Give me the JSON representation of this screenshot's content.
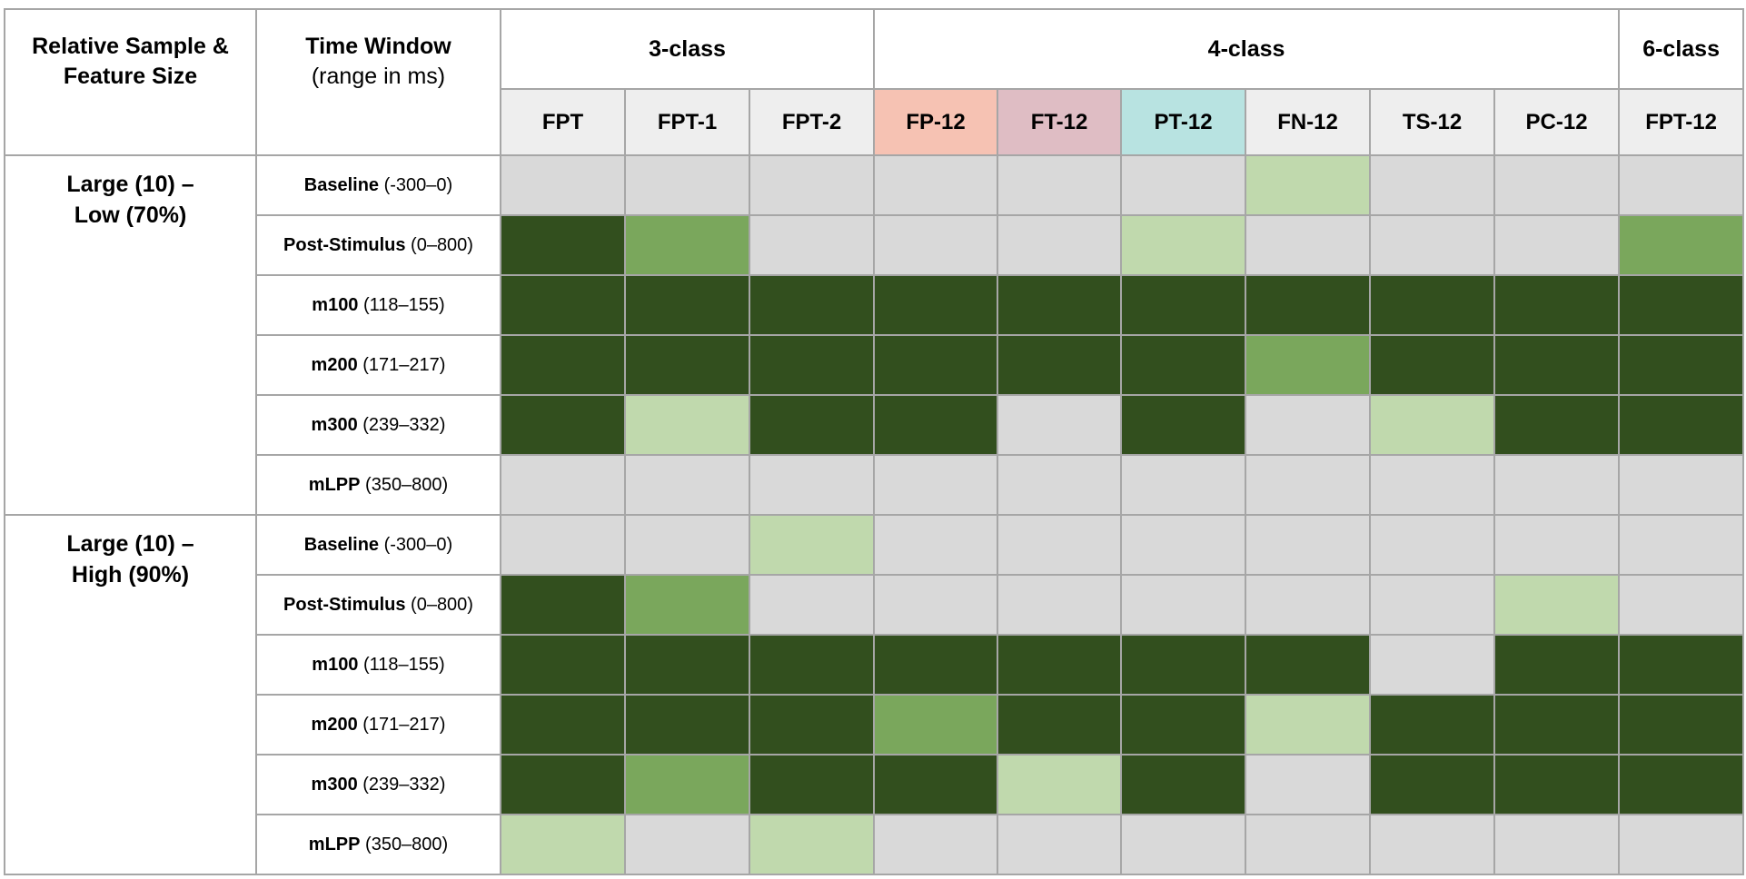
{
  "header": {
    "corner_line1": "Relative Sample &",
    "corner_line2": "Feature Size",
    "window_title": "Time Window",
    "window_sub": "(range in ms)",
    "groups": [
      {
        "label": "3-class",
        "span": 3
      },
      {
        "label": "4-class",
        "span": 6
      },
      {
        "label": "6-class",
        "span": 1
      }
    ],
    "columns": [
      "FPT",
      "FPT-1",
      "FPT-2",
      "FP-12",
      "FT-12",
      "PT-12",
      "FN-12",
      "TS-12",
      "PC-12",
      "FPT-12"
    ],
    "column_colors": {
      "FP-12": "#f6c2b3",
      "FT-12": "#dfbdc4",
      "PT-12": "#b8e3e1"
    }
  },
  "legend_colors": {
    "0": "#d9d9d9",
    "1": "#c0d9ad",
    "2": "#7aa75c",
    "3": "#324f1e"
  },
  "sections": [
    {
      "label_line1": "Large (10) –",
      "label_line2": "Low (70%)",
      "rows": [
        {
          "name": "Baseline",
          "range": "(-300–0)",
          "levels": [
            0,
            0,
            0,
            0,
            0,
            0,
            1,
            0,
            0,
            0
          ]
        },
        {
          "name": "Post-Stimulus",
          "range": "(0–800)",
          "levels": [
            3,
            2,
            0,
            0,
            0,
            1,
            0,
            0,
            0,
            2
          ]
        },
        {
          "name": "m100",
          "range": "(118–155)",
          "levels": [
            3,
            3,
            3,
            3,
            3,
            3,
            3,
            3,
            3,
            3
          ]
        },
        {
          "name": "m200",
          "range": "(171–217)",
          "levels": [
            3,
            3,
            3,
            3,
            3,
            3,
            2,
            3,
            3,
            3
          ]
        },
        {
          "name": "m300",
          "range": "(239–332)",
          "levels": [
            3,
            1,
            3,
            3,
            0,
            3,
            0,
            1,
            3,
            3
          ]
        },
        {
          "name": "mLPP",
          "range": "(350–800)",
          "levels": [
            0,
            0,
            0,
            0,
            0,
            0,
            0,
            0,
            0,
            0
          ]
        }
      ]
    },
    {
      "label_line1": "Large (10) –",
      "label_line2": "High (90%)",
      "rows": [
        {
          "name": "Baseline",
          "range": "(-300–0)",
          "levels": [
            0,
            0,
            1,
            0,
            0,
            0,
            0,
            0,
            0,
            0
          ]
        },
        {
          "name": "Post-Stimulus",
          "range": "(0–800)",
          "levels": [
            3,
            2,
            0,
            0,
            0,
            0,
            0,
            0,
            1,
            0
          ]
        },
        {
          "name": "m100",
          "range": "(118–155)",
          "levels": [
            3,
            3,
            3,
            3,
            3,
            3,
            3,
            0,
            3,
            3
          ]
        },
        {
          "name": "m200",
          "range": "(171–217)",
          "levels": [
            3,
            3,
            3,
            2,
            3,
            3,
            1,
            3,
            3,
            3
          ]
        },
        {
          "name": "m300",
          "range": "(239–332)",
          "levels": [
            3,
            2,
            3,
            3,
            1,
            3,
            0,
            3,
            3,
            3
          ]
        },
        {
          "name": "mLPP",
          "range": "(350–800)",
          "levels": [
            1,
            0,
            1,
            0,
            0,
            0,
            0,
            0,
            0,
            0
          ]
        }
      ]
    }
  ]
}
